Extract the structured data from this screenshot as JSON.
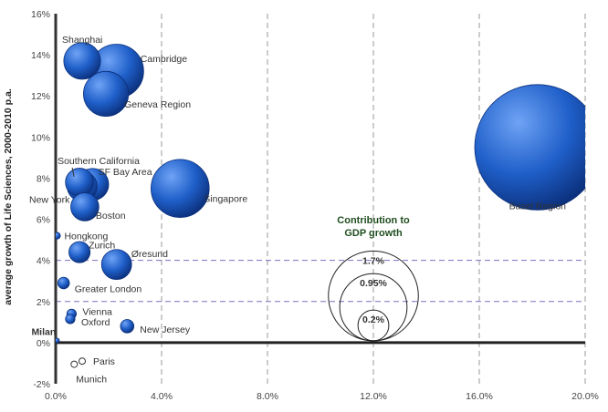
{
  "chart_data": {
    "type": "scatter",
    "ylabel": "average growth of Life Sciences, 2000-2010 p.a.",
    "xlim": [
      0,
      20
    ],
    "ylim": [
      -2,
      16
    ],
    "x_ticks": [
      0,
      4,
      8,
      12,
      16,
      20
    ],
    "x_tick_labels": [
      "0.0%",
      "4.0%",
      "8.0%",
      "12.0%",
      "16.0%",
      "20.0%"
    ],
    "y_ticks": [
      -2,
      0,
      2,
      4,
      6,
      8,
      10,
      12,
      14,
      16
    ],
    "y_tick_labels": [
      "-2%",
      "0%",
      "2%",
      "4%",
      "6%",
      "8%",
      "10%",
      "12%",
      "14%",
      "16%"
    ],
    "points": [
      {
        "label": "Shanghai",
        "x": 1.0,
        "y": 13.7,
        "size": 0.6
      },
      {
        "label": "Cambridge",
        "x": 2.3,
        "y": 13.2,
        "size": 1.3
      },
      {
        "label": "Geneva Region",
        "x": 1.9,
        "y": 12.1,
        "size": 0.9
      },
      {
        "label": "Southern California",
        "x": 0.9,
        "y": 7.8,
        "size": 0.35
      },
      {
        "label": "SF Bay Area",
        "x": 1.4,
        "y": 7.7,
        "size": 0.45
      },
      {
        "label": "New York",
        "x": 1.0,
        "y": 7.6,
        "size": 0.4
      },
      {
        "label": "Boston",
        "x": 1.1,
        "y": 6.6,
        "size": 0.35
      },
      {
        "label": "Singapore",
        "x": 4.7,
        "y": 7.5,
        "size": 1.5
      },
      {
        "label": "Basel Region",
        "x": 18.2,
        "y": 9.5,
        "size": 7.0
      },
      {
        "label": "Hongkong",
        "x": 0.05,
        "y": 5.2,
        "size": 0.02
      },
      {
        "label": "Zurich",
        "x": 0.9,
        "y": 4.4,
        "size": 0.2
      },
      {
        "label": "Øresund",
        "x": 2.3,
        "y": 3.8,
        "size": 0.4
      },
      {
        "label": "Greater London",
        "x": 0.3,
        "y": 2.9,
        "size": 0.06
      },
      {
        "label": "Vienna",
        "x": 0.6,
        "y": 1.4,
        "size": 0.04
      },
      {
        "label": "Oxford",
        "x": 0.55,
        "y": 1.15,
        "size": 0.04
      },
      {
        "label": "New Jersey",
        "x": 2.7,
        "y": 0.8,
        "size": 0.08
      },
      {
        "label": "Milan",
        "x": 0.05,
        "y": 0.1,
        "size": 0.01
      },
      {
        "label": "Paris",
        "x": 1.0,
        "y": -0.9,
        "size": 0.05,
        "negative": true
      },
      {
        "label": "Munich",
        "x": 0.7,
        "y": -1.05,
        "size": 0.05,
        "negative": true
      }
    ],
    "legend": {
      "title_line1": "Contribution to",
      "title_line2": "GDP growth",
      "entries": [
        {
          "label": "1.7%",
          "size": 1.7
        },
        {
          "label": "0.95%",
          "size": 0.95
        },
        {
          "label": "0.2%",
          "size": 0.2
        }
      ]
    },
    "colors": {
      "bubble": "#1f5fc9",
      "bubble_dark": "#0b2f7a",
      "bubble_light": "#5c95f0",
      "grid": "#9a9a9a",
      "ref_line": "#7b6fc0"
    }
  }
}
